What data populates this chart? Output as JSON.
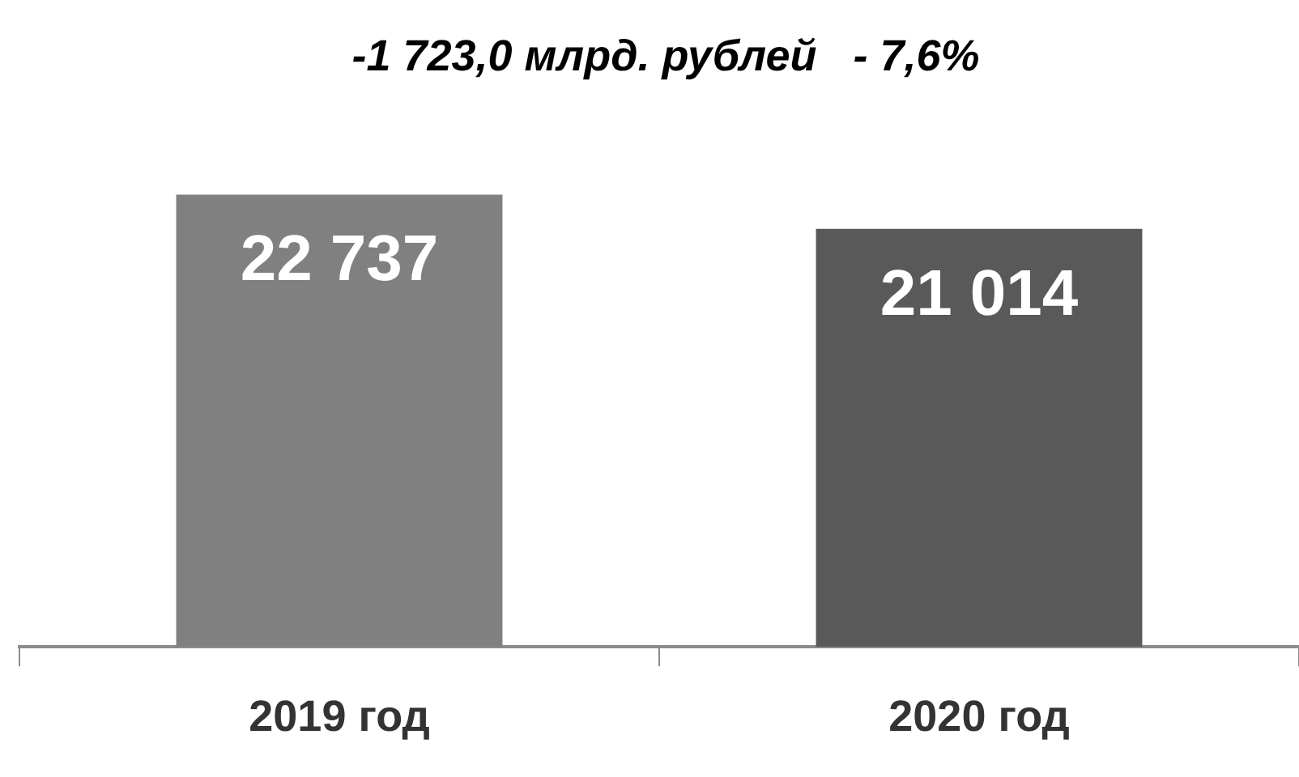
{
  "chart_data": {
    "type": "bar",
    "title": "-1 723,0 млрд. рублей   - 7,6%",
    "categories": [
      "2019 год",
      "2020 год"
    ],
    "values": [
      22737,
      21014
    ],
    "colors": [
      "#808080",
      "#595959"
    ],
    "data_labels": true,
    "value_labels": [
      "22 737",
      "21 014"
    ],
    "grid": false,
    "legend": false
  }
}
